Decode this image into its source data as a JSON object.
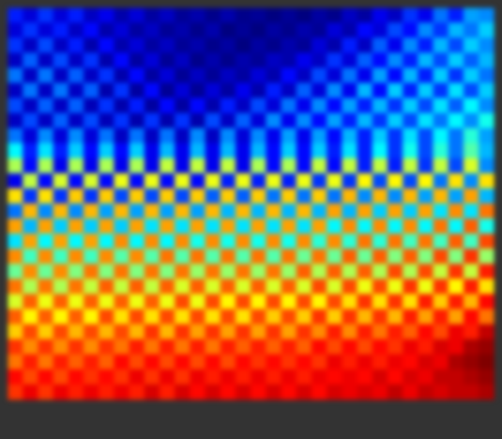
{
  "chart_data": {
    "type": "heatmap",
    "tick_labels": false,
    "grid": false,
    "cells": [
      [
        20,
        14,
        22,
        14,
        20,
        12,
        16,
        10,
        14,
        9,
        12,
        8,
        10,
        7,
        10,
        7,
        8,
        6,
        8,
        6,
        9,
        7,
        12,
        9,
        16,
        12,
        22,
        16,
        28,
        20,
        32,
        30
      ],
      [
        14,
        22,
        14,
        20,
        12,
        18,
        10,
        14,
        9,
        12,
        8,
        10,
        7,
        10,
        6,
        8,
        6,
        9,
        7,
        10,
        8,
        14,
        10,
        18,
        14,
        24,
        18,
        30,
        22,
        34,
        28,
        36
      ],
      [
        22,
        12,
        24,
        12,
        20,
        10,
        18,
        10,
        14,
        9,
        12,
        8,
        10,
        7,
        9,
        6,
        9,
        7,
        10,
        8,
        14,
        10,
        20,
        12,
        26,
        16,
        30,
        20,
        34,
        24,
        36,
        30
      ],
      [
        12,
        26,
        12,
        24,
        12,
        22,
        10,
        18,
        9,
        14,
        8,
        12,
        7,
        10,
        7,
        10,
        8,
        12,
        10,
        16,
        12,
        22,
        14,
        26,
        18,
        30,
        20,
        34,
        24,
        36,
        26,
        34
      ],
      [
        28,
        12,
        28,
        12,
        26,
        12,
        22,
        10,
        18,
        9,
        14,
        8,
        12,
        8,
        12,
        9,
        14,
        10,
        18,
        12,
        24,
        14,
        28,
        16,
        32,
        18,
        34,
        20,
        36,
        22,
        36,
        28
      ],
      [
        12,
        28,
        12,
        28,
        12,
        26,
        10,
        22,
        9,
        18,
        8,
        14,
        8,
        14,
        9,
        16,
        10,
        20,
        12,
        26,
        14,
        30,
        16,
        34,
        18,
        36,
        20,
        36,
        22,
        38,
        24,
        36
      ],
      [
        24,
        12,
        26,
        12,
        26,
        11,
        22,
        10,
        20,
        9,
        18,
        9,
        18,
        10,
        20,
        12,
        24,
        14,
        28,
        16,
        30,
        18,
        32,
        20,
        34,
        22,
        36,
        24,
        38,
        26,
        40,
        30
      ],
      [
        12,
        24,
        12,
        26,
        12,
        24,
        11,
        22,
        10,
        22,
        10,
        22,
        10,
        24,
        12,
        26,
        14,
        30,
        16,
        30,
        18,
        32,
        20,
        34,
        22,
        36,
        24,
        38,
        28,
        40,
        30,
        42
      ],
      [
        28,
        14,
        30,
        14,
        30,
        14,
        28,
        12,
        28,
        12,
        28,
        12,
        30,
        12,
        30,
        14,
        30,
        16,
        32,
        16,
        32,
        18,
        34,
        20,
        36,
        22,
        38,
        24,
        40,
        28,
        44,
        32
      ],
      [
        40,
        20,
        38,
        20,
        36,
        18,
        36,
        18,
        36,
        16,
        34,
        16,
        34,
        16,
        34,
        16,
        34,
        18,
        36,
        18,
        36,
        20,
        38,
        20,
        40,
        22,
        42,
        24,
        44,
        28,
        48,
        34
      ],
      [
        56,
        18,
        56,
        16,
        56,
        16,
        56,
        16,
        56,
        16,
        58,
        16,
        58,
        16,
        58,
        16,
        56,
        18,
        56,
        18,
        58,
        18,
        58,
        20,
        58,
        20,
        58,
        22,
        58,
        24,
        60,
        30
      ],
      [
        16,
        58,
        18,
        60,
        18,
        60,
        18,
        62,
        18,
        62,
        18,
        62,
        18,
        62,
        20,
        62,
        20,
        62,
        20,
        62,
        22,
        62,
        22,
        64,
        24,
        64,
        24,
        64,
        28,
        66,
        30,
        66
      ],
      [
        66,
        22,
        66,
        22,
        68,
        22,
        68,
        24,
        68,
        24,
        68,
        24,
        68,
        26,
        68,
        26,
        68,
        28,
        68,
        28,
        68,
        28,
        70,
        30,
        70,
        30,
        70,
        32,
        70,
        32,
        72,
        34
      ],
      [
        28,
        70,
        30,
        70,
        30,
        70,
        32,
        70,
        32,
        70,
        32,
        70,
        32,
        70,
        34,
        70,
        34,
        70,
        34,
        70,
        34,
        72,
        34,
        72,
        36,
        72,
        36,
        72,
        38,
        74,
        38,
        76
      ],
      [
        72,
        34,
        72,
        36,
        72,
        36,
        72,
        36,
        72,
        38,
        72,
        38,
        72,
        38,
        72,
        38,
        72,
        38,
        72,
        38,
        72,
        40,
        74,
        40,
        74,
        40,
        74,
        40,
        76,
        40,
        78,
        42
      ],
      [
        38,
        72,
        40,
        72,
        40,
        72,
        40,
        74,
        40,
        74,
        40,
        74,
        42,
        74,
        42,
        74,
        42,
        74,
        42,
        74,
        44,
        74,
        44,
        76,
        44,
        76,
        46,
        76,
        46,
        78,
        46,
        80
      ],
      [
        74,
        46,
        74,
        46,
        74,
        46,
        74,
        48,
        74,
        48,
        76,
        48,
        76,
        48,
        76,
        48,
        76,
        48,
        76,
        50,
        76,
        50,
        78,
        50,
        78,
        52,
        78,
        52,
        80,
        52,
        82,
        54
      ],
      [
        50,
        74,
        50,
        74,
        52,
        76,
        52,
        76,
        52,
        76,
        52,
        76,
        54,
        76,
        54,
        76,
        54,
        76,
        54,
        78,
        56,
        78,
        56,
        78,
        56,
        80,
        56,
        80,
        58,
        82,
        58,
        84
      ],
      [
        76,
        56,
        76,
        56,
        76,
        58,
        78,
        58,
        78,
        58,
        78,
        60,
        78,
        60,
        78,
        60,
        78,
        60,
        78,
        60,
        80,
        60,
        80,
        62,
        80,
        62,
        82,
        62,
        82,
        64,
        84,
        66
      ],
      [
        60,
        78,
        62,
        78,
        62,
        78,
        62,
        78,
        62,
        78,
        62,
        80,
        62,
        80,
        64,
        80,
        64,
        80,
        64,
        80,
        64,
        80,
        66,
        82,
        66,
        82,
        66,
        84,
        68,
        84,
        70,
        86
      ],
      [
        78,
        64,
        78,
        64,
        78,
        64,
        80,
        66,
        80,
        66,
        80,
        66,
        80,
        66,
        80,
        66,
        80,
        68,
        80,
        68,
        82,
        68,
        82,
        70,
        82,
        70,
        84,
        72,
        84,
        72,
        86,
        76
      ],
      [
        68,
        80,
        68,
        80,
        70,
        80,
        70,
        80,
        70,
        82,
        70,
        82,
        72,
        82,
        72,
        82,
        72,
        82,
        72,
        82,
        74,
        84,
        74,
        84,
        76,
        84,
        78,
        86,
        80,
        88,
        84,
        92
      ],
      [
        82,
        74,
        82,
        74,
        82,
        74,
        82,
        76,
        84,
        76,
        84,
        76,
        84,
        76,
        84,
        78,
        84,
        78,
        84,
        78,
        86,
        80,
        86,
        80,
        86,
        82,
        88,
        84,
        90,
        88,
        94,
        96
      ],
      [
        76,
        84,
        76,
        84,
        78,
        84,
        78,
        86,
        80,
        86,
        80,
        86,
        80,
        86,
        80,
        86,
        82,
        86,
        82,
        86,
        82,
        88,
        84,
        88,
        84,
        88,
        86,
        90,
        88,
        94,
        96,
        98
      ],
      [
        86,
        80,
        86,
        80,
        86,
        82,
        86,
        82,
        88,
        82,
        88,
        82,
        88,
        84,
        88,
        84,
        88,
        84,
        88,
        84,
        88,
        86,
        88,
        86,
        90,
        86,
        90,
        88,
        92,
        92,
        94,
        96
      ],
      [
        82,
        88,
        82,
        88,
        84,
        88,
        84,
        88,
        84,
        90,
        84,
        90,
        86,
        90,
        86,
        90,
        86,
        90,
        86,
        90,
        86,
        90,
        88,
        90,
        88,
        92,
        88,
        92,
        90,
        92,
        92,
        94
      ]
    ]
  }
}
